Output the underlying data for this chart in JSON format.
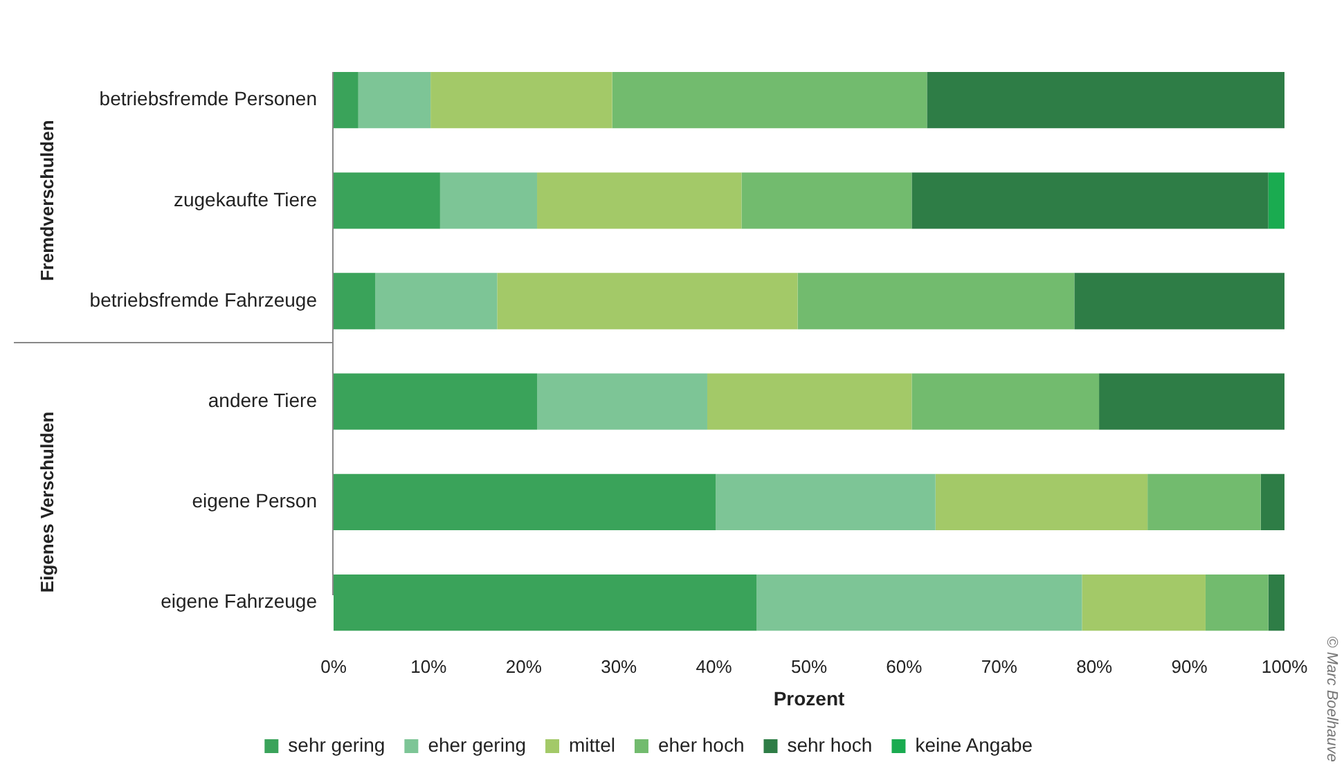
{
  "chart_data": {
    "type": "bar",
    "orientation": "horizontal",
    "stacked": true,
    "xlabel": "Prozent",
    "categories": [
      "betriebsfremde Personen",
      "zugekaufte Tiere",
      "betriebsfremde Fahrzeuge",
      "andere Tiere",
      "eigene Person",
      "eigene Fahrzeuge"
    ],
    "series": [
      {
        "name": "sehr gering",
        "color": "#3aa35a",
        "values": [
          2.6,
          11.2,
          4.4,
          21.4,
          40.2,
          44.5
        ]
      },
      {
        "name": "eher gering",
        "color": "#7dc596",
        "values": [
          7.6,
          10.2,
          12.8,
          17.9,
          23.1,
          34.2
        ]
      },
      {
        "name": "mittel",
        "color": "#a3c968",
        "values": [
          19.1,
          21.5,
          31.6,
          21.5,
          22.3,
          13.0
        ]
      },
      {
        "name": "eher hoch",
        "color": "#72bb6e",
        "values": [
          33.1,
          17.9,
          29.1,
          19.7,
          11.9,
          6.6
        ]
      },
      {
        "name": "sehr hoch",
        "color": "#2e7d46",
        "values": [
          37.6,
          37.5,
          22.1,
          19.5,
          2.5,
          1.7
        ]
      },
      {
        "name": "keine Angabe",
        "color": "#1aab50",
        "values": [
          0,
          1.7,
          0,
          0,
          0,
          0
        ]
      }
    ],
    "xlim": [
      0,
      100
    ],
    "xticks": [
      {
        "value": 0,
        "label": "0%"
      },
      {
        "value": 10,
        "label": "10%"
      },
      {
        "value": 20,
        "label": "20%"
      },
      {
        "value": 30,
        "label": "30%"
      },
      {
        "value": 40,
        "label": "40%"
      },
      {
        "value": 50,
        "label": "50%"
      },
      {
        "value": 60,
        "label": "60%"
      },
      {
        "value": 70,
        "label": "70%"
      },
      {
        "value": 80,
        "label": "80%"
      },
      {
        "value": 90,
        "label": "90%"
      },
      {
        "value": 100,
        "label": "100%"
      }
    ],
    "grid": false,
    "legend": "bottom",
    "annotations": [
      "Fremdverschulden",
      "Eigenes Verschulden",
      "© Marc Boelhauve"
    ]
  }
}
